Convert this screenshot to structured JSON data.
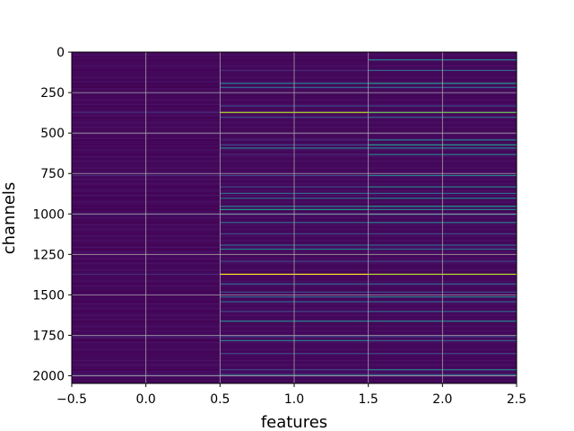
{
  "chart_data": {
    "type": "heatmap",
    "title": "",
    "xlabel": "features",
    "ylabel": "channels",
    "xlim": [
      -0.5,
      2.5
    ],
    "ylim": [
      2047.5,
      -0.5
    ],
    "x_ticks": [
      "−0.5",
      "0.0",
      "0.5",
      "1.0",
      "1.5",
      "2.0",
      "2.5"
    ],
    "x_tick_values": [
      -0.5,
      0.0,
      0.5,
      1.0,
      1.5,
      2.0,
      2.5
    ],
    "y_ticks": [
      "0",
      "250",
      "500",
      "750",
      "1000",
      "1250",
      "1500",
      "1750",
      "2000"
    ],
    "y_tick_values": [
      0,
      250,
      500,
      750,
      1000,
      1250,
      1500,
      1750,
      2000
    ],
    "grid": true,
    "colormap": "viridis",
    "columns": [
      0,
      1,
      2
    ],
    "background_color": "#46085c",
    "colormap_colors": [
      "#440154",
      "#482878",
      "#3e4989",
      "#31688e",
      "#26828e",
      "#1f9e89",
      "#35b779",
      "#6ece58",
      "#b5de2b",
      "#fde725"
    ],
    "bright_channels": [
      {
        "channel": 45,
        "values": [
          0.05,
          0.05,
          0.45
        ]
      },
      {
        "channel": 110,
        "values": [
          0.05,
          0.15,
          0.3
        ]
      },
      {
        "channel": 190,
        "values": [
          0.05,
          0.4,
          0.5
        ]
      },
      {
        "channel": 215,
        "values": [
          0.05,
          0.3,
          0.35
        ]
      },
      {
        "channel": 330,
        "values": [
          0.05,
          0.2,
          0.25
        ]
      },
      {
        "channel": 370,
        "values": [
          0.08,
          0.85,
          0.75
        ]
      },
      {
        "channel": 400,
        "values": [
          0.05,
          0.25,
          0.3
        ]
      },
      {
        "channel": 540,
        "values": [
          0.05,
          0.1,
          0.4
        ]
      },
      {
        "channel": 570,
        "values": [
          0.05,
          0.2,
          0.5
        ]
      },
      {
        "channel": 590,
        "values": [
          0.05,
          0.45,
          0.4
        ]
      },
      {
        "channel": 630,
        "values": [
          0.05,
          0.15,
          0.45
        ]
      },
      {
        "channel": 760,
        "values": [
          0.08,
          0.2,
          0.4
        ]
      },
      {
        "channel": 830,
        "values": [
          0.05,
          0.25,
          0.45
        ]
      },
      {
        "channel": 870,
        "values": [
          0.05,
          0.35,
          0.35
        ]
      },
      {
        "channel": 900,
        "values": [
          0.05,
          0.3,
          0.4
        ]
      },
      {
        "channel": 950,
        "values": [
          0.05,
          0.4,
          0.55
        ]
      },
      {
        "channel": 970,
        "values": [
          0.05,
          0.5,
          0.45
        ]
      },
      {
        "channel": 1000,
        "values": [
          0.08,
          0.25,
          0.3
        ]
      },
      {
        "channel": 1050,
        "values": [
          0.05,
          0.35,
          0.45
        ]
      },
      {
        "channel": 1120,
        "values": [
          0.05,
          0.2,
          0.25
        ]
      },
      {
        "channel": 1190,
        "values": [
          0.05,
          0.3,
          0.3
        ]
      },
      {
        "channel": 1215,
        "values": [
          0.05,
          0.4,
          0.35
        ]
      },
      {
        "channel": 1290,
        "values": [
          0.05,
          0.2,
          0.2
        ]
      },
      {
        "channel": 1370,
        "values": [
          0.1,
          0.95,
          0.9
        ]
      },
      {
        "channel": 1430,
        "values": [
          0.05,
          0.3,
          0.3
        ]
      },
      {
        "channel": 1480,
        "values": [
          0.05,
          0.25,
          0.25
        ]
      },
      {
        "channel": 1510,
        "values": [
          0.05,
          0.35,
          0.4
        ]
      },
      {
        "channel": 1540,
        "values": [
          0.05,
          0.3,
          0.3
        ]
      },
      {
        "channel": 1600,
        "values": [
          0.05,
          0.25,
          0.3
        ]
      },
      {
        "channel": 1660,
        "values": [
          0.05,
          0.45,
          0.4
        ]
      },
      {
        "channel": 1755,
        "values": [
          0.12,
          0.2,
          0.25
        ]
      },
      {
        "channel": 1780,
        "values": [
          0.05,
          0.4,
          0.35
        ]
      },
      {
        "channel": 1860,
        "values": [
          0.05,
          0.2,
          0.25
        ]
      },
      {
        "channel": 1960,
        "values": [
          0.05,
          0.25,
          0.4
        ]
      },
      {
        "channel": 1990,
        "values": [
          0.08,
          0.3,
          0.3
        ]
      }
    ]
  }
}
